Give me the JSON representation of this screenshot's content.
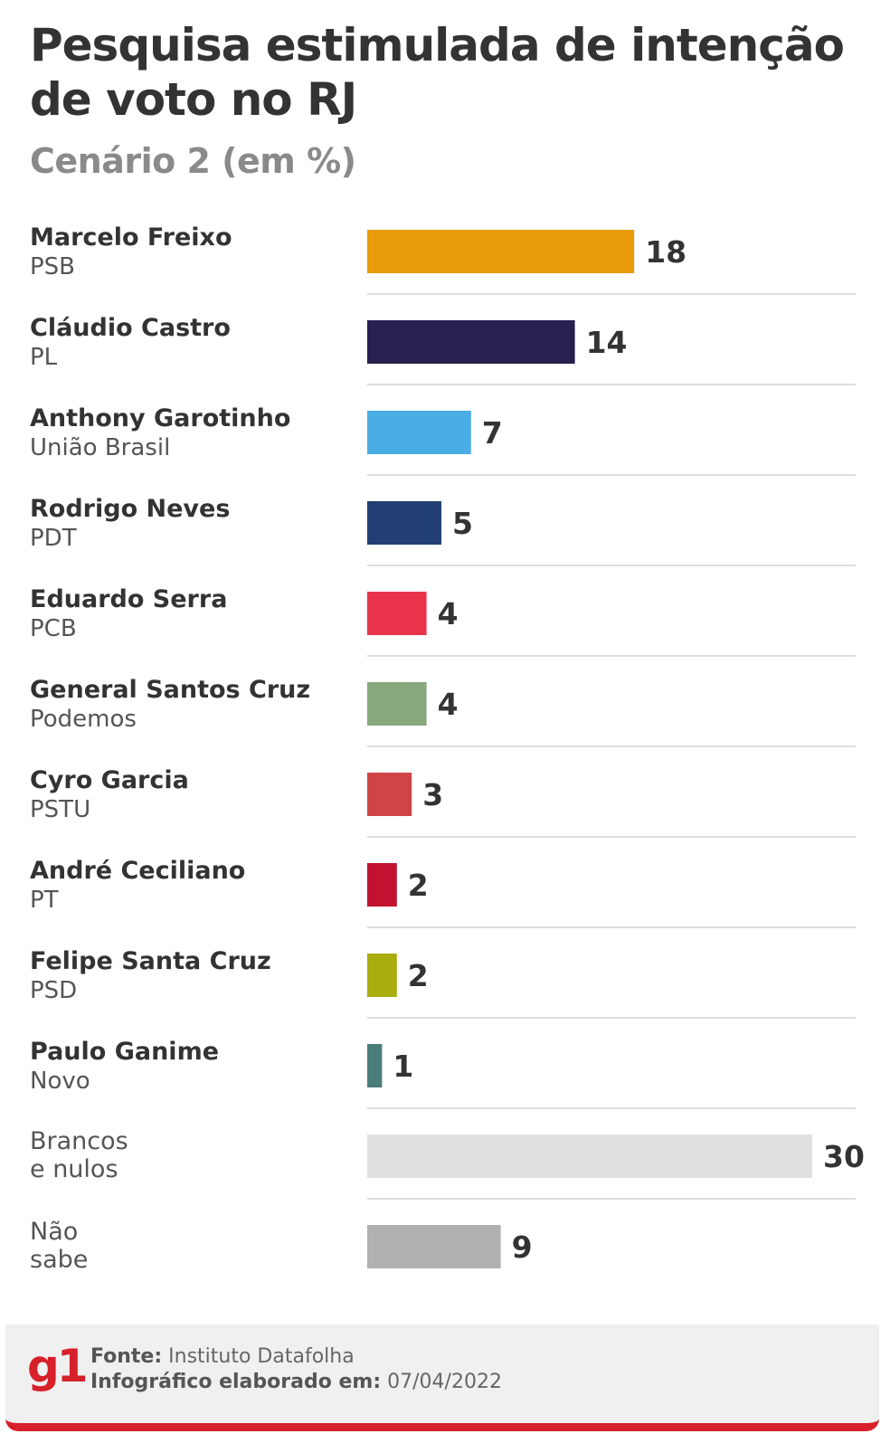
{
  "title": "Pesquisa estimulada de intenção de voto no RJ",
  "subtitle": "Cenário 2 (em %)",
  "chart_data": {
    "type": "bar",
    "orientation": "horizontal",
    "categories": [
      {
        "name": "Marcelo Freixo",
        "party": "PSB"
      },
      {
        "name": "Cláudio Castro",
        "party": "PL"
      },
      {
        "name": "Anthony Garotinho",
        "party": "União Brasil"
      },
      {
        "name": "Rodrigo Neves",
        "party": "PDT"
      },
      {
        "name": "Eduardo Serra",
        "party": "PCB"
      },
      {
        "name": "General Santos Cruz",
        "party": "Podemos"
      },
      {
        "name": "Cyro Garcia",
        "party": "PSTU"
      },
      {
        "name": "André Ceciliano",
        "party": "PT"
      },
      {
        "name": "Felipe Santa Cruz",
        "party": "PSD"
      },
      {
        "name": "Paulo Ganime",
        "party": "Novo"
      },
      {
        "name": "",
        "party": "Brancos e nulos"
      },
      {
        "name": "",
        "party": "Não sabe"
      }
    ],
    "values": [
      18,
      14,
      7,
      5,
      4,
      4,
      3,
      2,
      2,
      1,
      30,
      9
    ],
    "colors": [
      "#e89b08",
      "#262150",
      "#4aade6",
      "#213f73",
      "#e8334a",
      "#87a77c",
      "#cf4545",
      "#c1122f",
      "#a9ad0e",
      "#4a7d7a",
      "#e0e0e0",
      "#b0b0b0"
    ],
    "xlim": [
      0,
      30
    ]
  },
  "footer": {
    "logo": "g1",
    "source_label": "Fonte:",
    "source": "Instituto Datafolha",
    "date_label": "Infográfico elaborado em:",
    "date": "07/04/2022"
  }
}
